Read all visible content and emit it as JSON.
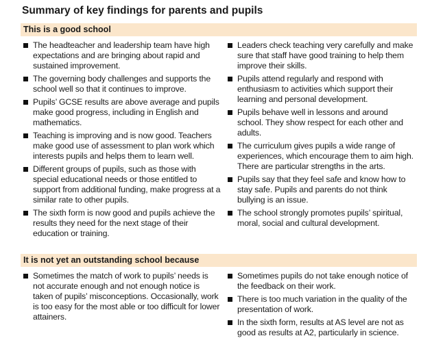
{
  "title": "Summary of key findings for parents and pupils",
  "sections": [
    {
      "heading": "This is a good school",
      "left": [
        "The headteacher and leadership team have high expectations and are bringing about rapid and sustained improvement.",
        "The governing body challenges and supports the school well so that it continues to improve.",
        "Pupils’ GCSE results are above average and pupils make good progress, including in English and mathematics.",
        "Teaching is improving and is now good. Teachers make good use of assessment to plan work which interests pupils and helps them to learn well.",
        "Different groups of pupils, such as those with special educational needs or those entitled to support from additional funding, make progress at a similar rate to other pupils.",
        "The sixth form is now good and pupils achieve the results they need for the next stage of their education or training."
      ],
      "right": [
        "Leaders check teaching very carefully and make sure that staff have good training to help them improve their skills.",
        "Pupils attend regularly and respond with enthusiasm to activities which support their learning and personal development.",
        "Pupils behave well in lessons and around school. They show respect for each other and adults.",
        "The curriculum gives pupils a wide range of experiences, which encourage them to aim high. There are particular strengths in the arts.",
        "Pupils say that they feel safe and know how to stay safe. Pupils and parents do not think bullying is an issue.",
        "The school strongly promotes pupils’ spiritual, moral, social and cultural development."
      ]
    },
    {
      "heading": "It is not yet an outstanding school because",
      "left": [
        "Sometimes the match of work to pupils’ needs is not accurate enough and not enough notice is taken of pupils’ misconceptions. Occasionally, work is too easy for the most able or too difficult for lower attainers."
      ],
      "right": [
        "Sometimes pupils do not take enough notice of the feedback on their work.",
        "There is too much variation in the quality of the presentation of work.",
        "In the sixth form, results at AS level are not as good as results at A2, particularly in science."
      ]
    }
  ],
  "colors": {
    "band": "#fbe6cb",
    "bullet": "#111111"
  }
}
